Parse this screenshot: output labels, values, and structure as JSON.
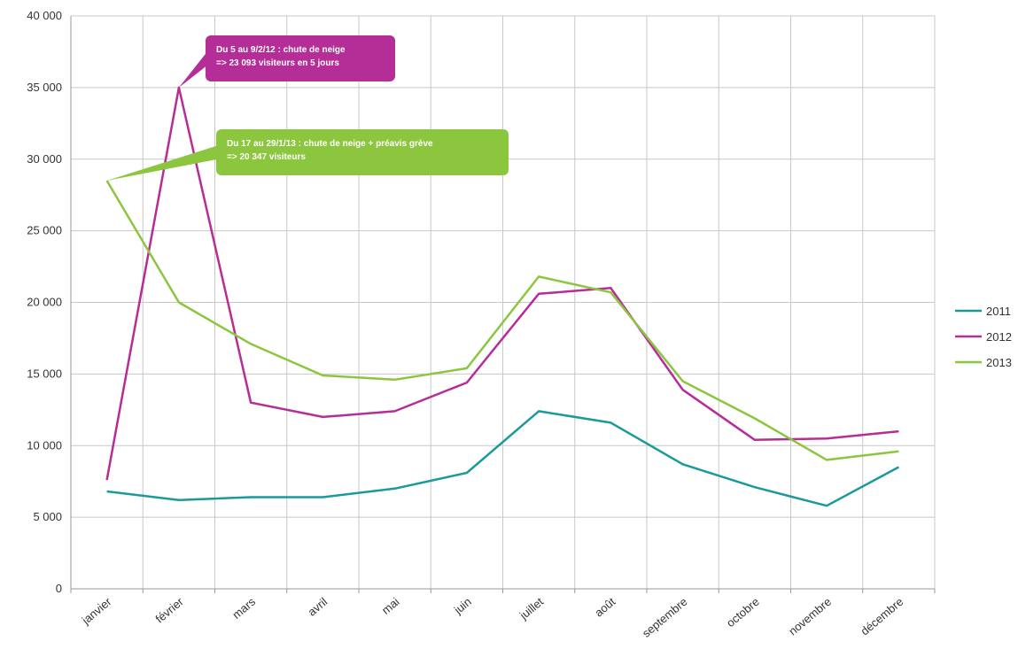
{
  "chart_data": {
    "type": "line",
    "categories": [
      "janvier",
      "février",
      "mars",
      "avril",
      "mai",
      "juin",
      "juillet",
      "août",
      "septembre",
      "octobre",
      "novembre",
      "décembre"
    ],
    "ylim": [
      0,
      40000
    ],
    "yticks": [
      {
        "value": 0,
        "label": "0"
      },
      {
        "value": 5000,
        "label": "5 000"
      },
      {
        "value": 10000,
        "label": "10 000"
      },
      {
        "value": 15000,
        "label": "15 000"
      },
      {
        "value": 20000,
        "label": "20 000"
      },
      {
        "value": 25000,
        "label": "25 000"
      },
      {
        "value": 30000,
        "label": "30 000"
      },
      {
        "value": 35000,
        "label": "35 000"
      },
      {
        "value": 40000,
        "label": "40 000"
      }
    ],
    "grid": true,
    "legend_position": "right",
    "series": [
      {
        "name": "2011",
        "color": "#1a9a9a",
        "values": [
          6800,
          6200,
          6400,
          6400,
          7000,
          8100,
          12400,
          11600,
          8700,
          7100,
          5800,
          8500
        ]
      },
      {
        "name": "2012",
        "color": "#b52d97",
        "values": [
          7600,
          35000,
          13000,
          12000,
          12400,
          14400,
          20600,
          21000,
          13900,
          10400,
          10500,
          11000
        ]
      },
      {
        "name": "2013",
        "color": "#8cc63f",
        "values": [
          28500,
          20000,
          17100,
          14900,
          14600,
          15400,
          21800,
          20700,
          14500,
          11900,
          9000,
          9600
        ]
      }
    ],
    "annotations": [
      {
        "series_index": 1,
        "point_index": 1,
        "color": "#b52d97",
        "lines": [
          "Du 5 au 9/2/12 : chute de neige",
          "=> 23 093 visiteurs en 5 jours"
        ]
      },
      {
        "series_index": 2,
        "point_index": 0,
        "color": "#8cc63f",
        "lines": [
          "Du 17 au 29/1/13 : chute de neige + préavis grève",
          "=> 20 347 visiteurs"
        ]
      }
    ]
  }
}
